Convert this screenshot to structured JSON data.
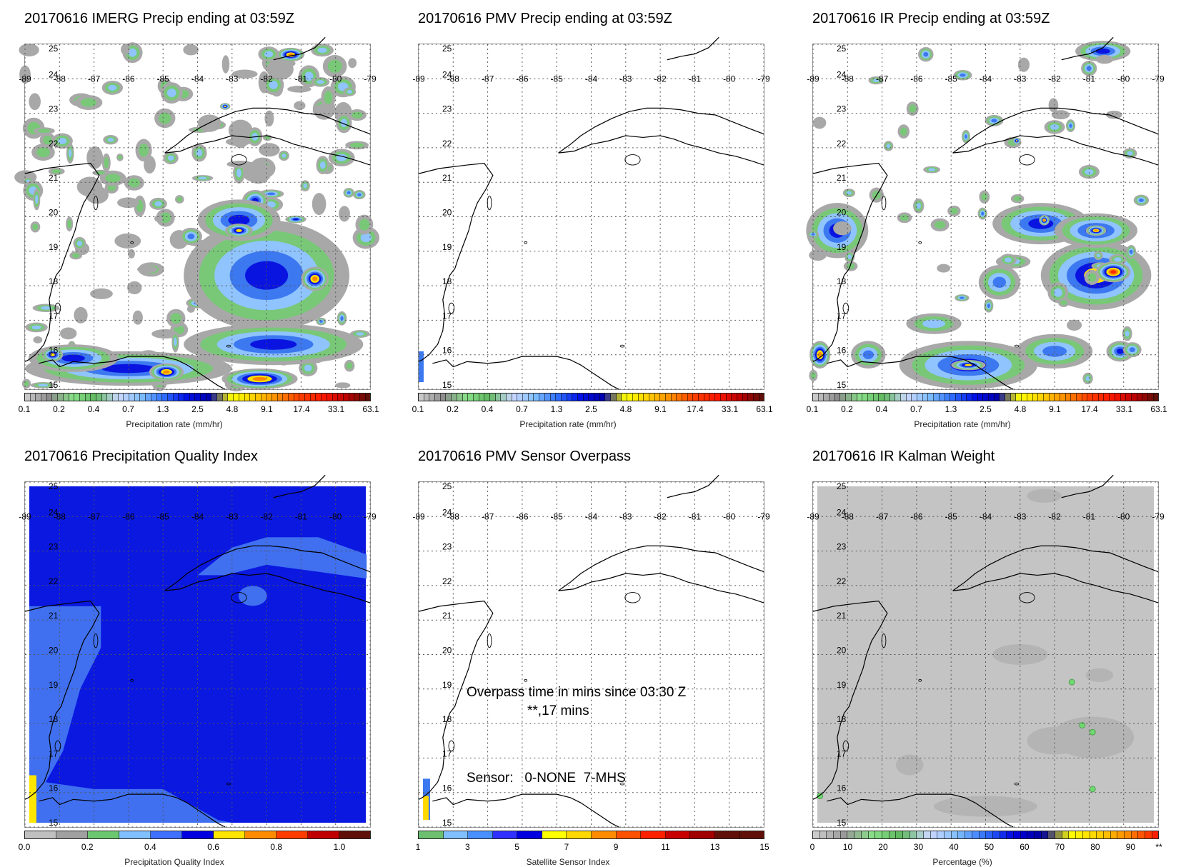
{
  "panels": [
    {
      "id": "imerg",
      "title": "20170616 IMERG Precip ending at 03:59Z",
      "caption": "Precipitation rate (mm/hr)",
      "colorbar": "precip",
      "ticks": [
        "0.1",
        "0.2",
        "0.4",
        "0.7",
        "1.3",
        "2.5",
        "4.8",
        "9.1",
        "17.4",
        "33.1",
        "63.1"
      ]
    },
    {
      "id": "pmv",
      "title": "20170616 PMV Precip ending at 03:59Z",
      "caption": "Precipitation rate (mm/hr)",
      "colorbar": "precip",
      "ticks": [
        "0.1",
        "0.2",
        "0.4",
        "0.7",
        "1.3",
        "2.5",
        "4.8",
        "9.1",
        "17.4",
        "33.1",
        "63.1"
      ]
    },
    {
      "id": "ir",
      "title": "20170616 IR Precip ending at 03:59Z",
      "caption": "Precipitation rate (mm/hr)",
      "colorbar": "precip",
      "ticks": [
        "0.1",
        "0.2",
        "0.4",
        "0.7",
        "1.3",
        "2.5",
        "4.8",
        "9.1",
        "17.4",
        "33.1",
        "63.1"
      ]
    },
    {
      "id": "pqi",
      "title": "20170616 Precipitation Quality Index",
      "caption": "Precipitation Quality Index",
      "colorbar": "pqi",
      "ticks": [
        "0.0",
        "0.2",
        "0.4",
        "0.6",
        "0.8",
        "1.0"
      ]
    },
    {
      "id": "overpass",
      "title": "20170616 PMV Sensor Overpass",
      "caption": "Satellite Sensor Index",
      "colorbar": "sensor",
      "ticks": [
        "1",
        "3",
        "5",
        "7",
        "9",
        "11",
        "13",
        "15"
      ],
      "overlay": {
        "line1": "Overpass time in mins since 03:30 Z",
        "line2": "**,17 mins",
        "sensor": "Sensor:   0-NONE  7-MHS"
      }
    },
    {
      "id": "kalman",
      "title": "20170616 IR Kalman Weight",
      "caption": "Percentage (%)",
      "colorbar": "percent",
      "ticks": [
        "0",
        "10",
        "20",
        "30",
        "40",
        "50",
        "60",
        "70",
        "80",
        "90",
        "**"
      ]
    }
  ],
  "map": {
    "lon_range": [
      -89,
      -79
    ],
    "lat_range": [
      15,
      25
    ],
    "lon_labels": [
      "-89",
      "-88",
      "-87",
      "-86",
      "-85",
      "-84",
      "-83",
      "-82",
      "-81",
      "-80",
      "-79"
    ],
    "lat_labels": [
      "15",
      "16",
      "17",
      "18",
      "19",
      "20",
      "21",
      "22",
      "23",
      "24",
      "25"
    ]
  },
  "colors": {
    "precip_stops": [
      "#c8c8c8",
      "#8c8c8c",
      "#88e088",
      "#60b860",
      "#ccd8ff",
      "#80c0ff",
      "#3070ff",
      "#0010e8",
      "#0000b0",
      "#ffff00",
      "#ffd000",
      "#ff8c00",
      "#ff4000",
      "#ff1800",
      "#c00000",
      "#601008"
    ],
    "pqi": [
      "#c0c0c0",
      "#a0a0a0",
      "#6cc870",
      "#80c0ff",
      "#4070ff",
      "#0000e0",
      "#ffe600",
      "#ff8c00",
      "#ff3c00",
      "#c00000",
      "#601008"
    ],
    "sensor": [
      "#6cc070",
      "#80c0ff",
      "#4890ff",
      "#3030ff",
      "#0000e0",
      "#ffff00",
      "#ffd800",
      "#ff8c00",
      "#ff5000",
      "#ff2000",
      "#c80000",
      "#a00000",
      "#601008",
      "#601008"
    ],
    "percent_stops": [
      "#cccccc",
      "#999999",
      "#88e088",
      "#60b860",
      "#ccd8ff",
      "#80c0ff",
      "#3070ff",
      "#0000e0",
      "#0000a0",
      "#ffff00",
      "#ffd000",
      "#ff8c00",
      "#ff2000"
    ],
    "pqi_field": "#0a18e0",
    "pqi_light": "#4070f0",
    "kalman_field": "#c4c4c4"
  }
}
